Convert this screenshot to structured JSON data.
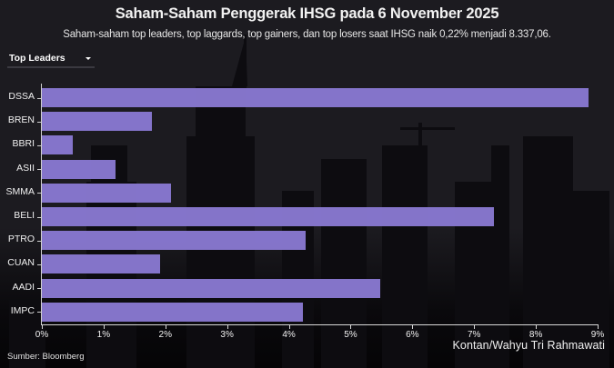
{
  "header": {
    "title": "Saham-Saham Penggerak IHSG pada 6 November 2025",
    "subtitle": "Saham-saham top leaders, top laggards, top gainers, dan top losers saat IHSG naik 0,22% menjadi 8.337,06."
  },
  "dropdown": {
    "selected": "Top Leaders",
    "icon": "caret-down-icon"
  },
  "footer": {
    "source": "Sumber: Bloomberg",
    "credit": "Kontan/Wahyu Tri Rahmawati"
  },
  "colors": {
    "bar": "#8878cf",
    "background": "#1c1b20",
    "text": "#ffffff"
  },
  "chart_data": {
    "type": "bar",
    "orientation": "horizontal",
    "title": "Saham-Saham Penggerak IHSG pada 6 November 2025",
    "subtitle": "Saham-saham top leaders, top laggards, top gainers, dan top losers saat IHSG naik 0,22% menjadi 8.337,06.",
    "categories": [
      "DSSA",
      "BREN",
      "BBRI",
      "ASII",
      "SMMA",
      "BELI",
      "PTRO",
      "CUAN",
      "AADI",
      "IMPC"
    ],
    "values": [
      8.85,
      1.78,
      0.5,
      1.19,
      2.09,
      7.32,
      4.27,
      1.92,
      5.48,
      4.23
    ],
    "value_unit": "%",
    "xlabel": "",
    "ylabel": "",
    "xlim": [
      0,
      9
    ],
    "x_ticks": [
      "0%",
      "1%",
      "2%",
      "3%",
      "4%",
      "5%",
      "6%",
      "7%",
      "8%",
      "9%"
    ],
    "grid": false,
    "legend": null,
    "filter": "Top Leaders"
  }
}
